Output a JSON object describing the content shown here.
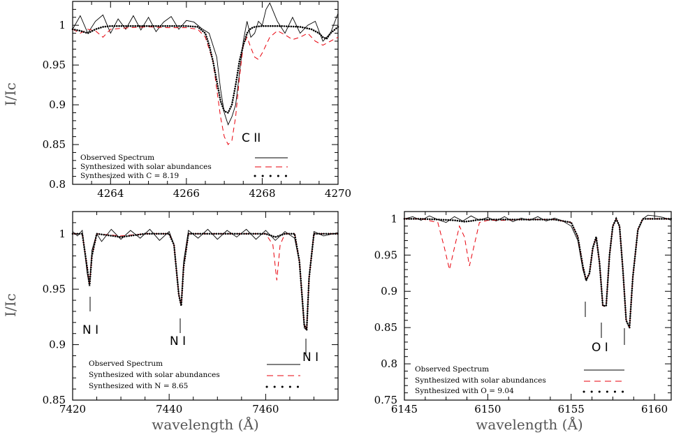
{
  "panels": {
    "carbon": {
      "ylabel": "I/Ic",
      "xlabel": "",
      "line_label": "C II",
      "legend": [
        "Observed Spectrum",
        "Synthesized with solar abundances",
        "Synthesized with C = 8.19"
      ]
    },
    "nitrogen": {
      "ylabel": "I/Ic",
      "xlabel": "wavelength (Å)",
      "line_labels": [
        "N I",
        "N I",
        "N I"
      ],
      "legend": [
        "Observed Spectrum",
        "Synthesized with solar abundances",
        "Synthesized with N = 8.65"
      ]
    },
    "oxygen": {
      "ylabel": "",
      "xlabel": "wavelength (Å)",
      "line_label": "O I",
      "legend": [
        "Observed Spectrum",
        "Synthesized with solar abundances",
        "Synthesized with O = 9.04"
      ]
    }
  },
  "colors": {
    "observed": "#000000",
    "solar": "#e8000b",
    "fit": "#000000",
    "axis": "#000000"
  },
  "chart_data": [
    {
      "type": "line",
      "id": "carbon",
      "xlabel": "",
      "ylabel": "I/Ic",
      "xlim": [
        4263,
        4270
      ],
      "ylim": [
        0.8,
        1.03
      ],
      "xticks": [
        4264,
        4266,
        4268,
        4270
      ],
      "yticks": [
        0.8,
        0.85,
        0.9,
        0.95,
        1
      ],
      "legend_position": "bottom-left",
      "annotations": [
        {
          "text": "C II",
          "x": 4267.7,
          "y": 0.845
        }
      ],
      "series": [
        {
          "name": "Observed Spectrum",
          "style": "solid",
          "x": [
            4263.0,
            4263.2,
            4263.4,
            4263.6,
            4263.8,
            4264.0,
            4264.2,
            4264.4,
            4264.6,
            4264.8,
            4265.0,
            4265.2,
            4265.4,
            4265.6,
            4265.8,
            4266.0,
            4266.2,
            4266.4,
            4266.6,
            4266.8,
            4266.9,
            4267.0,
            4267.1,
            4267.2,
            4267.3,
            4267.4,
            4267.5,
            4267.6,
            4267.7,
            4267.8,
            4267.9,
            4268.0,
            4268.1,
            4268.2,
            4268.4,
            4268.6,
            4268.8,
            4269.0,
            4269.2,
            4269.4,
            4269.6,
            4269.8,
            4270.0
          ],
          "y": [
            0.995,
            1.012,
            0.99,
            1.005,
            1.013,
            0.99,
            1.008,
            0.995,
            1.012,
            0.994,
            1.01,
            0.992,
            1.004,
            1.011,
            0.995,
            1.006,
            1.004,
            0.996,
            0.99,
            0.96,
            0.92,
            0.89,
            0.875,
            0.885,
            0.9,
            0.94,
            0.98,
            1.005,
            0.985,
            0.99,
            1.005,
            1.0,
            1.02,
            1.028,
            1.005,
            0.99,
            1.01,
            0.99,
            1.0,
            1.005,
            0.98,
            0.99,
            1.015
          ]
        },
        {
          "name": "Synthesized with solar abundances",
          "style": "dashed",
          "x": [
            4263.0,
            4263.2,
            4263.4,
            4263.6,
            4263.8,
            4264.0,
            4264.5,
            4265.0,
            4265.5,
            4266.0,
            4266.3,
            4266.5,
            4266.7,
            4266.8,
            4266.9,
            4267.0,
            4267.1,
            4267.2,
            4267.3,
            4267.4,
            4267.5,
            4267.6,
            4267.7,
            4267.8,
            4267.9,
            4268.0,
            4268.2,
            4268.4,
            4268.6,
            4268.8,
            4269.0,
            4269.2,
            4269.4,
            4269.6,
            4269.8,
            4270.0
          ],
          "y": [
            0.995,
            0.99,
            0.995,
            0.993,
            0.985,
            0.995,
            0.997,
            0.998,
            0.997,
            0.997,
            0.995,
            0.985,
            0.955,
            0.92,
            0.885,
            0.86,
            0.85,
            0.855,
            0.885,
            0.935,
            0.975,
            0.985,
            0.972,
            0.96,
            0.957,
            0.965,
            0.985,
            0.993,
            0.988,
            0.982,
            0.985,
            0.99,
            0.98,
            0.975,
            0.98,
            0.985
          ]
        },
        {
          "name": "Synthesized with C = 8.19",
          "style": "dotted",
          "x": [
            4263.0,
            4263.2,
            4263.4,
            4263.6,
            4263.8,
            4264.0,
            4264.5,
            4265.0,
            4265.5,
            4266.0,
            4266.3,
            4266.5,
            4266.6,
            4266.7,
            4266.8,
            4266.9,
            4267.0,
            4267.1,
            4267.2,
            4267.3,
            4267.4,
            4267.5,
            4267.6,
            4267.7,
            4267.8,
            4268.0,
            4268.5,
            4269.0,
            4269.3,
            4269.5,
            4269.6,
            4269.7,
            4269.8,
            4270.0
          ],
          "y": [
            0.995,
            0.993,
            0.99,
            0.995,
            0.998,
            0.999,
            0.999,
            0.999,
            0.999,
            0.999,
            0.998,
            0.99,
            0.975,
            0.955,
            0.93,
            0.905,
            0.892,
            0.89,
            0.9,
            0.925,
            0.955,
            0.975,
            0.99,
            0.996,
            0.998,
            0.999,
            0.999,
            0.998,
            0.995,
            0.99,
            0.985,
            0.983,
            0.99,
            0.998
          ]
        }
      ]
    },
    {
      "type": "line",
      "id": "nitrogen",
      "xlabel": "wavelength (Å)",
      "ylabel": "I/Ic",
      "xlim": [
        7420,
        7475
      ],
      "ylim": [
        0.85,
        1.02
      ],
      "xticks": [
        7420,
        7440,
        7460
      ],
      "yticks": [
        0.85,
        0.9,
        0.95,
        1
      ],
      "legend_position": "bottom-left",
      "annotations": [
        {
          "text": "N I",
          "x": 7423.5,
          "y": 0.913
        },
        {
          "text": "N I",
          "x": 7442.5,
          "y": 0.904
        },
        {
          "text": "N I",
          "x": 7468.0,
          "y": 0.887
        }
      ],
      "series": [
        {
          "name": "Observed Spectrum",
          "style": "solid",
          "x": [
            7420,
            7421,
            7422,
            7423,
            7423.5,
            7424,
            7425,
            7426,
            7428,
            7430,
            7432,
            7434,
            7436,
            7438,
            7440,
            7441,
            7442,
            7442.5,
            7443,
            7444,
            7446,
            7448,
            7450,
            7452,
            7454,
            7456,
            7458,
            7460,
            7462,
            7464,
            7466,
            7467,
            7468,
            7468.5,
            7469,
            7470,
            7472,
            7475
          ],
          "y": [
            1.002,
            0.998,
            1.003,
            0.965,
            0.953,
            0.985,
            1.0,
            0.993,
            1.004,
            0.995,
            1.003,
            0.996,
            1.004,
            0.994,
            1.002,
            0.99,
            0.945,
            0.935,
            0.975,
            1.003,
            0.996,
            1.004,
            0.995,
            1.003,
            0.997,
            1.004,
            0.995,
            1.003,
            0.994,
            1.002,
            0.996,
            0.975,
            0.915,
            0.913,
            0.96,
            1.002,
            0.998,
            1.001
          ]
        },
        {
          "name": "Synthesized with solar abundances",
          "style": "dashed",
          "x": [
            7420,
            7422,
            7423,
            7423.5,
            7424,
            7425,
            7430,
            7435,
            7440,
            7441,
            7442,
            7442.5,
            7443,
            7444,
            7450,
            7455,
            7460,
            7461.5,
            7462.3,
            7463,
            7464,
            7466,
            7467,
            7468,
            7468.5,
            7469,
            7470,
            7475
          ],
          "y": [
            1.0,
            1.0,
            0.97,
            0.955,
            0.98,
            1.0,
            0.998,
            1.0,
            1.0,
            0.99,
            0.945,
            0.935,
            0.97,
            1.0,
            1.0,
            1.0,
            1.0,
            0.99,
            0.958,
            0.99,
            1.0,
            1.0,
            0.975,
            0.918,
            0.913,
            0.96,
            1.0,
            1.0
          ]
        },
        {
          "name": "Synthesized with N = 8.65",
          "style": "dotted",
          "x": [
            7420,
            7422,
            7423,
            7423.5,
            7424,
            7425,
            7430,
            7435,
            7440,
            7441,
            7442,
            7442.5,
            7443,
            7444,
            7450,
            7455,
            7460,
            7462,
            7464,
            7466,
            7467,
            7468,
            7468.5,
            7469,
            7470,
            7475
          ],
          "y": [
            1.0,
            1.0,
            0.97,
            0.953,
            0.98,
            1.0,
            0.997,
            1.0,
            1.0,
            0.99,
            0.945,
            0.935,
            0.97,
            1.0,
            1.0,
            1.0,
            1.0,
            0.997,
            1.0,
            1.0,
            0.975,
            0.918,
            0.913,
            0.96,
            1.0,
            1.0
          ]
        }
      ]
    },
    {
      "type": "line",
      "id": "oxygen",
      "xlabel": "wavelength (Å)",
      "ylabel": "",
      "xlim": [
        6145,
        6161
      ],
      "ylim": [
        0.75,
        1.01
      ],
      "xticks": [
        6145,
        6150,
        6155,
        6160
      ],
      "yticks": [
        0.75,
        0.8,
        0.85,
        0.9,
        0.95,
        1
      ],
      "legend_position": "bottom-left",
      "annotations": [
        {
          "text": "O I",
          "x": 6156.9,
          "y": 0.81
        }
      ],
      "series": [
        {
          "name": "Observed Spectrum",
          "style": "solid",
          "x": [
            6145,
            6145.5,
            6146,
            6146.5,
            6147,
            6147.5,
            6148,
            6148.5,
            6149,
            6149.5,
            6150,
            6150.5,
            6151,
            6151.5,
            6152,
            6152.5,
            6153,
            6153.5,
            6154,
            6154.5,
            6155,
            6155.4,
            6155.7,
            6155.9,
            6156.1,
            6156.3,
            6156.5,
            6156.7,
            6156.9,
            6157.1,
            6157.3,
            6157.5,
            6157.7,
            6157.9,
            6158.1,
            6158.3,
            6158.5,
            6158.7,
            6159,
            6159.3,
            6159.6,
            6160,
            6160.5,
            6161
          ],
          "y": [
            1.0,
            1.003,
            0.998,
            1.004,
            0.999,
            0.995,
            1.003,
            0.997,
            1.004,
            0.998,
            1.002,
            0.997,
            1.003,
            0.996,
            1.001,
            0.998,
            1.003,
            0.997,
            1.001,
            0.997,
            0.99,
            0.97,
            0.93,
            0.915,
            0.925,
            0.96,
            0.975,
            0.94,
            0.88,
            0.88,
            0.95,
            0.99,
            1.0,
            0.99,
            0.93,
            0.86,
            0.85,
            0.92,
            0.985,
            1.0,
            1.005,
            1.004,
            1.002,
            0.998
          ]
        },
        {
          "name": "Synthesized with solar abundances",
          "style": "dashed",
          "x": [
            6145,
            6146,
            6147,
            6147.4,
            6147.7,
            6148,
            6148.3,
            6148.6,
            6148.9,
            6149.2,
            6149.5,
            6150,
            6151,
            6152,
            6153,
            6154,
            6155,
            6155.4,
            6155.7,
            6155.9,
            6156.1,
            6156.3,
            6156.5,
            6156.7,
            6156.9,
            6157.1,
            6157.3,
            6157.5,
            6157.7,
            6157.9,
            6158.1,
            6158.3,
            6158.5,
            6158.7,
            6159,
            6159.3,
            6160,
            6161
          ],
          "y": [
            1.0,
            1.0,
            0.995,
            0.96,
            0.93,
            0.96,
            0.99,
            0.975,
            0.935,
            0.965,
            0.995,
            0.998,
            0.998,
            0.999,
            0.999,
            0.999,
            0.995,
            0.975,
            0.935,
            0.915,
            0.925,
            0.96,
            0.975,
            0.94,
            0.88,
            0.88,
            0.95,
            0.99,
            1.0,
            0.99,
            0.93,
            0.86,
            0.85,
            0.92,
            0.985,
            1.0,
            1.0,
            1.0
          ]
        },
        {
          "name": "Synthesized with O = 9.04",
          "style": "dotted",
          "x": [
            6145,
            6146,
            6147,
            6148,
            6148.6,
            6149,
            6149.5,
            6150,
            6151,
            6152,
            6153,
            6154,
            6155,
            6155.4,
            6155.7,
            6155.9,
            6156.1,
            6156.3,
            6156.5,
            6156.7,
            6156.9,
            6157.1,
            6157.3,
            6157.5,
            6157.7,
            6157.9,
            6158.1,
            6158.3,
            6158.5,
            6158.7,
            6159,
            6159.3,
            6160,
            6161
          ],
          "y": [
            1.0,
            1.0,
            0.999,
            0.998,
            0.996,
            0.997,
            0.999,
            0.999,
            0.999,
            0.999,
            0.999,
            0.999,
            0.995,
            0.975,
            0.935,
            0.915,
            0.925,
            0.96,
            0.975,
            0.94,
            0.88,
            0.88,
            0.95,
            0.99,
            1.0,
            0.99,
            0.93,
            0.86,
            0.85,
            0.92,
            0.985,
            1.0,
            1.0,
            1.0
          ]
        }
      ]
    }
  ]
}
